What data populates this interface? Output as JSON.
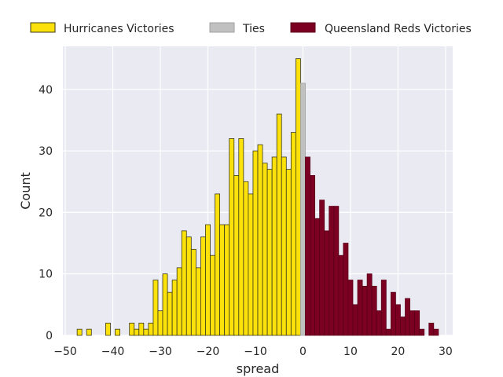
{
  "chart_data": {
    "type": "bar",
    "title": "",
    "xlabel": "spread",
    "ylabel": "Count",
    "xlim": [
      -50.5,
      31.5
    ],
    "ylim": [
      0,
      47
    ],
    "xticks": [
      -50,
      -40,
      -30,
      -20,
      -10,
      0,
      10,
      20,
      30
    ],
    "yticks": [
      0,
      10,
      20,
      30,
      40
    ],
    "grid": true,
    "legend_position": "top-center",
    "bin_width": 1,
    "series": [
      {
        "name": "Hurricanes Victories",
        "color": "#fde10a",
        "edge": "#3a3a1a",
        "x": [
          -47,
          -45,
          -41,
          -39,
          -36,
          -35,
          -34,
          -33,
          -32,
          -31,
          -30,
          -29,
          -28,
          -27,
          -26,
          -25,
          -24,
          -23,
          -22,
          -21,
          -20,
          -19,
          -18,
          -17,
          -16,
          -15,
          -14,
          -13,
          -12,
          -11,
          -10,
          -9,
          -8,
          -7,
          -6,
          -5,
          -4,
          -3,
          -2,
          -1
        ],
        "values": [
          1,
          1,
          2,
          1,
          2,
          1,
          2,
          1,
          2,
          9,
          4,
          10,
          7,
          9,
          11,
          17,
          16,
          14,
          11,
          16,
          18,
          13,
          23,
          18,
          18,
          32,
          26,
          32,
          25,
          23,
          30,
          31,
          28,
          27,
          29,
          36,
          29,
          27,
          33,
          45
        ]
      },
      {
        "name": "Ties",
        "color": "#c0c0c0",
        "edge": "#a0a0a0",
        "x": [
          0
        ],
        "values": [
          41
        ]
      },
      {
        "name": "Queensland Reds Victories",
        "color": "#7b0022",
        "edge": "#5a0018",
        "x": [
          1,
          2,
          3,
          4,
          5,
          6,
          7,
          8,
          9,
          10,
          11,
          12,
          13,
          14,
          15,
          16,
          17,
          18,
          19,
          20,
          21,
          22,
          23,
          24,
          25,
          27,
          28
        ],
        "values": [
          29,
          26,
          19,
          22,
          17,
          21,
          21,
          13,
          15,
          9,
          5,
          9,
          8,
          10,
          8,
          4,
          9,
          1,
          7,
          5,
          3,
          6,
          4,
          4,
          1,
          2,
          1
        ]
      }
    ]
  }
}
